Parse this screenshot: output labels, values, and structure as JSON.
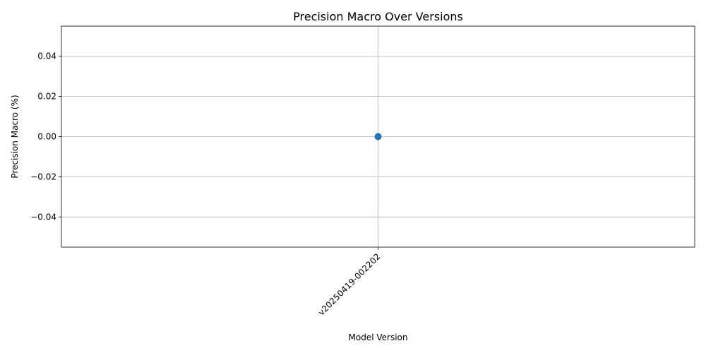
{
  "chart_data": {
    "type": "line",
    "title": "Precision Macro Over Versions",
    "xlabel": "Model Version",
    "ylabel": "Precision Macro (%)",
    "categories": [
      "v20250419-002202"
    ],
    "series": [
      {
        "values": [
          0.0
        ],
        "color": "#1f77b4",
        "marker": "circle"
      }
    ],
    "ylim": [
      -0.055,
      0.055
    ],
    "yticks": [
      -0.04,
      -0.02,
      0.0,
      0.02,
      0.04
    ],
    "ytick_labels": [
      "−0.04",
      "−0.02",
      "0.00",
      "0.02",
      "0.04"
    ],
    "grid": true,
    "xtick_rotation": 45
  }
}
